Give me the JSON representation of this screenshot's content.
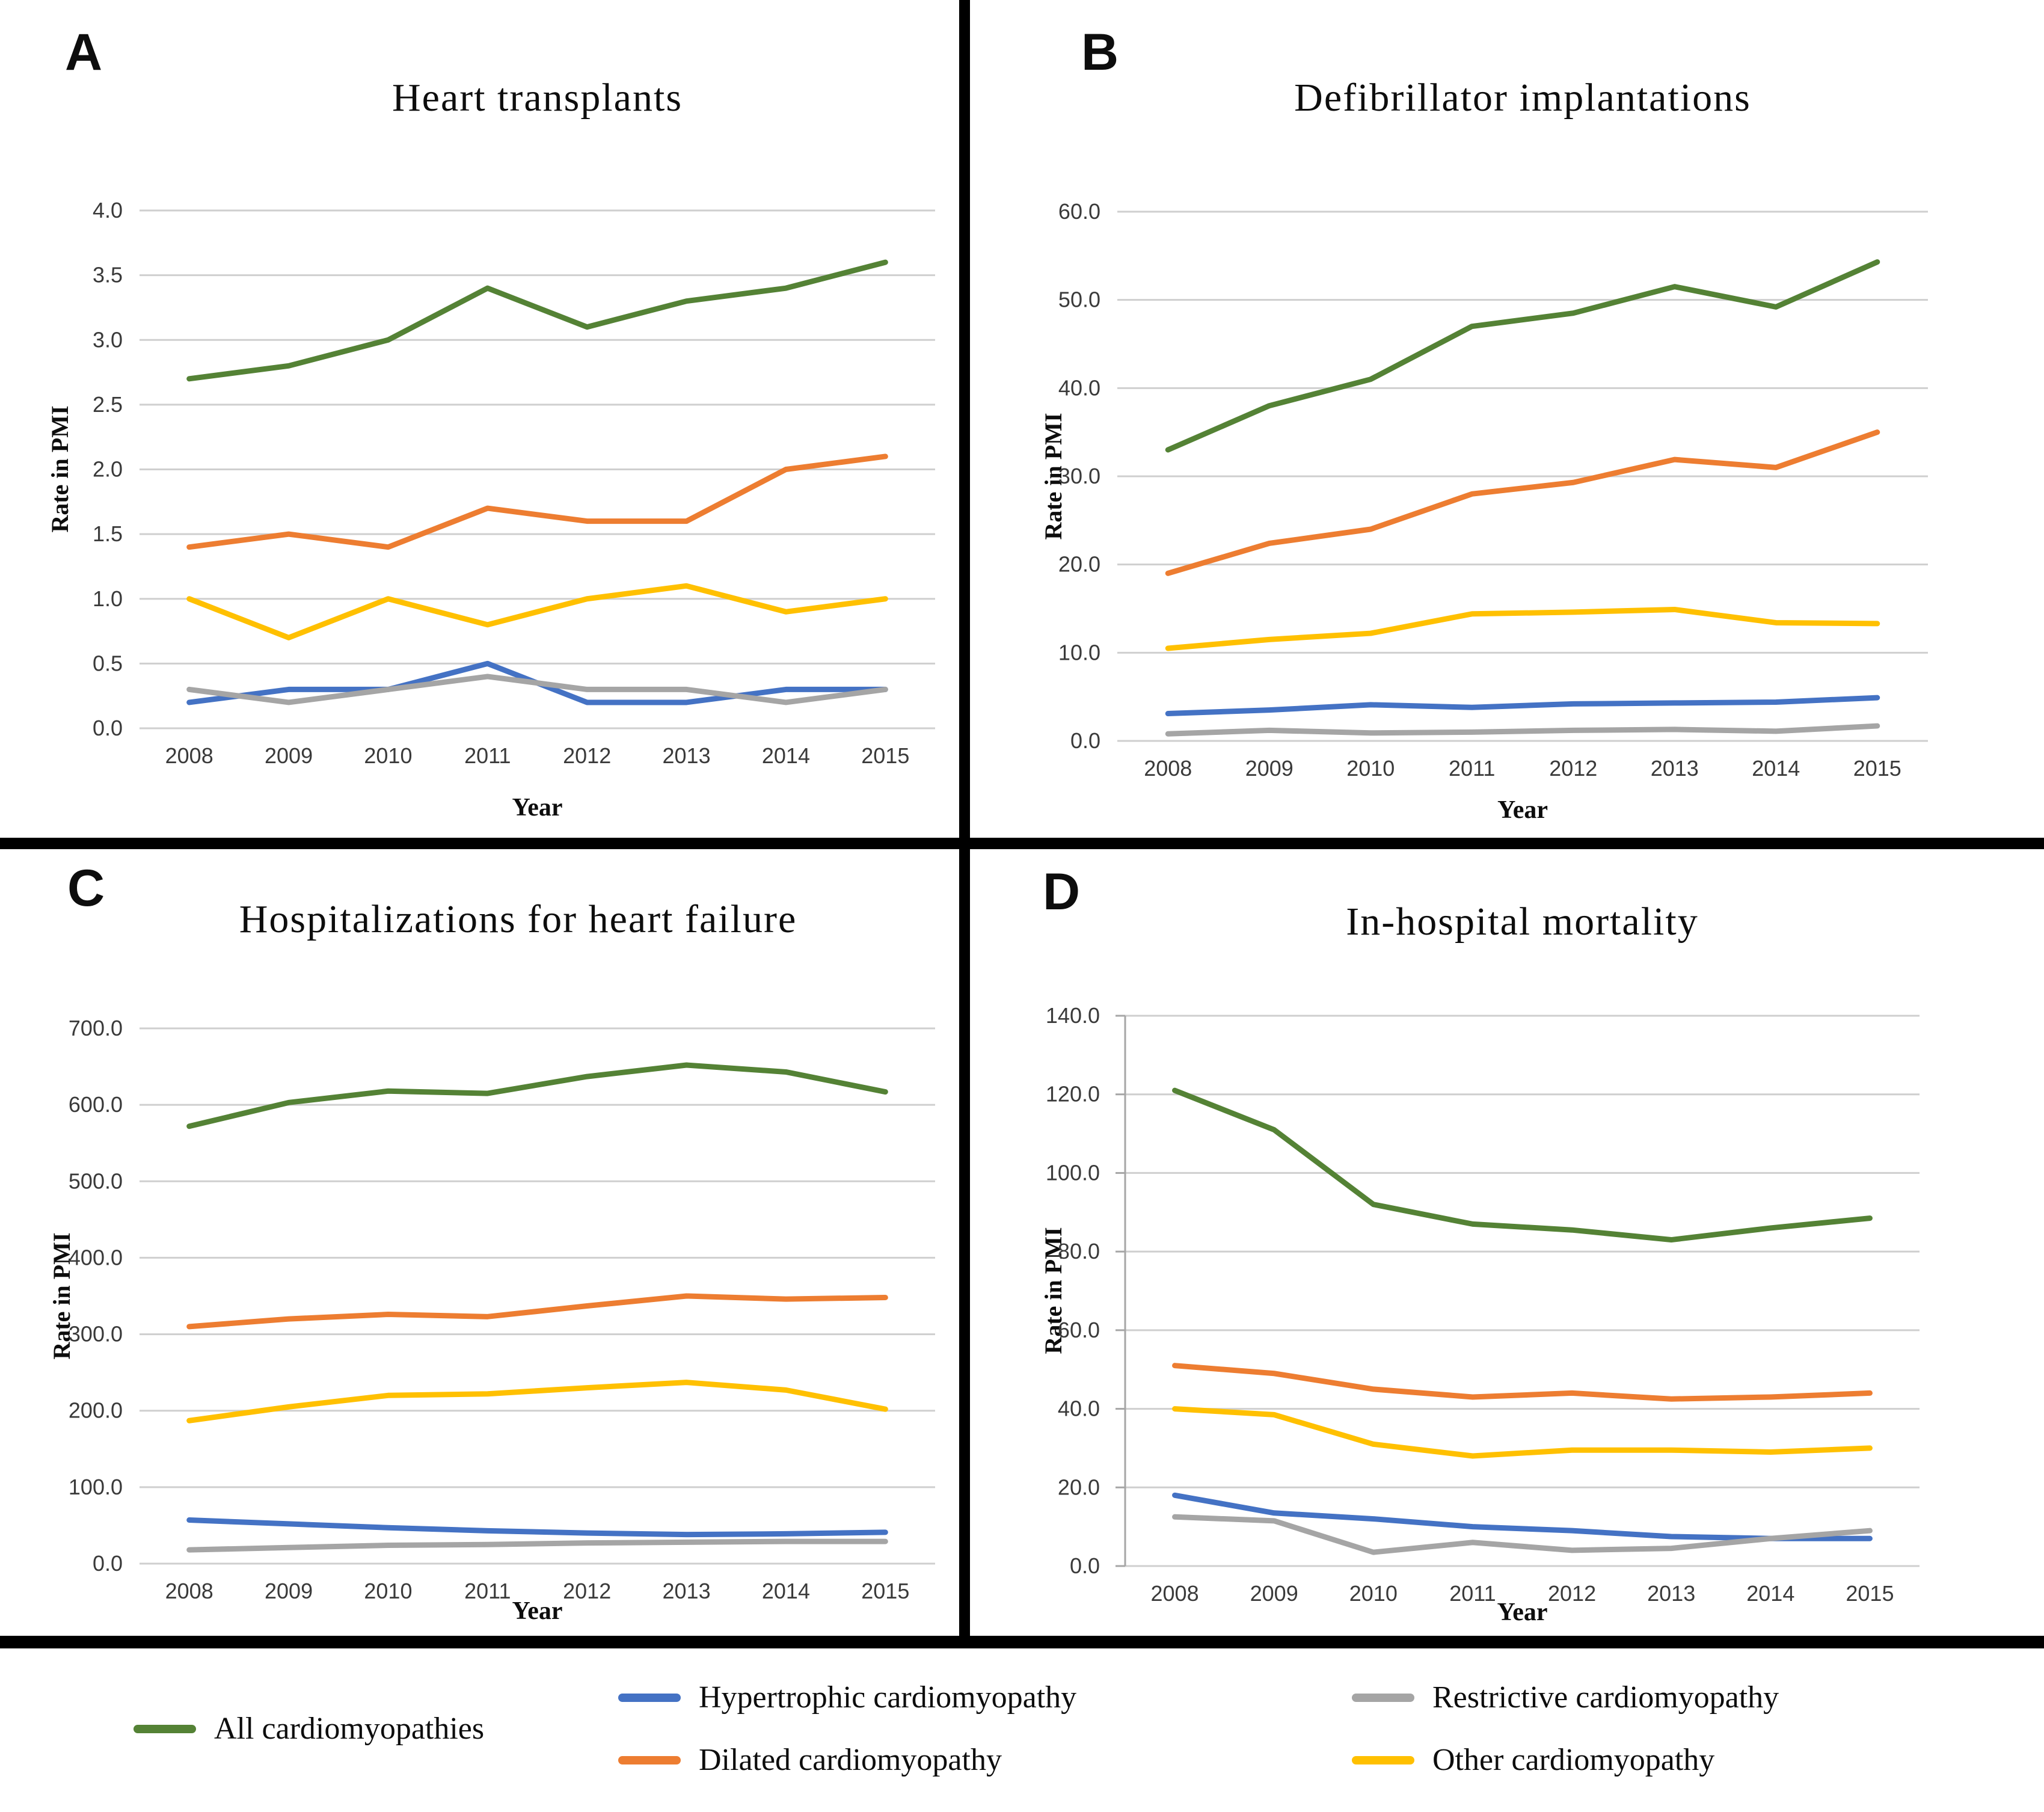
{
  "colors": {
    "all": "#548235",
    "hypertrophic": "#4472C4",
    "dilated": "#ED7D31",
    "restrictive": "#A5A5A5",
    "other": "#FFC000",
    "gridline": "#CFCFCF",
    "axis_line": "#A6A6A6",
    "divider": "#000000"
  },
  "legend": {
    "items": [
      {
        "label": "All cardiomyopathies",
        "color_key": "all"
      },
      {
        "label": "Hypertrophic cardiomyopathy",
        "color_key": "hypertrophic"
      },
      {
        "label": "Dilated cardiomyopathy",
        "color_key": "dilated"
      },
      {
        "label": "Restrictive cardiomyopathy",
        "color_key": "restrictive"
      },
      {
        "label": "Other cardiomyopathy",
        "color_key": "other"
      }
    ]
  },
  "chart_data": [
    {
      "type": "line",
      "letter": "A",
      "title": "Heart transplants",
      "xlabel": "Year",
      "ylabel": "Rate in PMI",
      "grid": true,
      "legend_position": "shared-bottom",
      "categories": [
        "2008",
        "2009",
        "2010",
        "2011",
        "2012",
        "2013",
        "2014",
        "2015"
      ],
      "ylim": [
        0,
        4
      ],
      "ytick_step": 0.5,
      "ytick_labels": [
        "0.0",
        "0.5",
        "1.0",
        "1.5",
        "2.0",
        "2.5",
        "3.0",
        "3.5",
        "4.0"
      ],
      "series": [
        {
          "name": "All cardiomyopathies",
          "color_key": "all",
          "values": [
            2.7,
            2.8,
            3.0,
            3.4,
            3.1,
            3.3,
            3.4,
            3.6
          ]
        },
        {
          "name": "Dilated cardiomyopathy",
          "color_key": "dilated",
          "values": [
            1.4,
            1.5,
            1.4,
            1.7,
            1.6,
            1.6,
            2.0,
            2.1
          ]
        },
        {
          "name": "Other cardiomyopathy",
          "color_key": "other",
          "values": [
            1.0,
            0.7,
            1.0,
            0.8,
            1.0,
            1.1,
            0.9,
            1.0
          ]
        },
        {
          "name": "Hypertrophic cardiomyopathy",
          "color_key": "hypertrophic",
          "values": [
            0.2,
            0.3,
            0.3,
            0.5,
            0.2,
            0.2,
            0.3,
            0.3
          ]
        },
        {
          "name": "Restrictive cardiomyopathy",
          "color_key": "restrictive",
          "values": [
            0.3,
            0.2,
            0.3,
            0.4,
            0.3,
            0.3,
            0.2,
            0.3
          ]
        }
      ]
    },
    {
      "type": "line",
      "letter": "B",
      "title": "Defibrillator implantations",
      "xlabel": "Year",
      "ylabel": "Rate in PMI",
      "grid": true,
      "legend_position": "shared-bottom",
      "categories": [
        "2008",
        "2009",
        "2010",
        "2011",
        "2012",
        "2013",
        "2014",
        "2015"
      ],
      "ylim": [
        0,
        60
      ],
      "ytick_step": 10,
      "ytick_labels": [
        "0.0",
        "10.0",
        "20.0",
        "30.0",
        "40.0",
        "50.0",
        "60.0"
      ],
      "series": [
        {
          "name": "All cardiomyopathies",
          "color_key": "all",
          "values": [
            33,
            38,
            41,
            47,
            48.5,
            51.5,
            49.2,
            54.3
          ]
        },
        {
          "name": "Dilated cardiomyopathy",
          "color_key": "dilated",
          "values": [
            19,
            22.4,
            24,
            28,
            29.3,
            31.9,
            31,
            35
          ]
        },
        {
          "name": "Other cardiomyopathy",
          "color_key": "other",
          "values": [
            10.5,
            11.5,
            12.2,
            14.4,
            14.6,
            14.9,
            13.4,
            13.3
          ]
        },
        {
          "name": "Hypertrophic cardiomyopathy",
          "color_key": "hypertrophic",
          "values": [
            3.1,
            3.5,
            4.1,
            3.8,
            4.2,
            4.3,
            4.4,
            4.9
          ]
        },
        {
          "name": "Restrictive cardiomyopathy",
          "color_key": "restrictive",
          "values": [
            0.8,
            1.2,
            0.9,
            1.0,
            1.2,
            1.3,
            1.1,
            1.7
          ]
        }
      ]
    },
    {
      "type": "line",
      "letter": "C",
      "title": "Hospitalizations for heart failure",
      "xlabel": "Year",
      "ylabel": "Rate in PMI",
      "grid": true,
      "legend_position": "shared-bottom",
      "categories": [
        "2008",
        "2009",
        "2010",
        "2011",
        "2012",
        "2013",
        "2014",
        "2015"
      ],
      "ylim": [
        0,
        700
      ],
      "ytick_step": 100,
      "ytick_labels": [
        "0.0",
        "100.0",
        "200.0",
        "300.0",
        "400.0",
        "500.0",
        "600.0",
        "700.0"
      ],
      "series": [
        {
          "name": "All cardiomyopathies",
          "color_key": "all",
          "values": [
            572,
            603,
            618,
            615,
            637,
            652,
            643,
            617
          ]
        },
        {
          "name": "Dilated cardiomyopathy",
          "color_key": "dilated",
          "values": [
            310,
            320,
            326,
            323,
            337,
            350,
            346,
            348
          ]
        },
        {
          "name": "Other cardiomyopathy",
          "color_key": "other",
          "values": [
            187,
            205,
            220,
            222,
            230,
            237,
            227,
            202
          ]
        },
        {
          "name": "Hypertrophic cardiomyopathy",
          "color_key": "hypertrophic",
          "values": [
            57,
            52,
            47,
            43,
            40,
            38,
            39,
            41
          ]
        },
        {
          "name": "Restrictive cardiomyopathy",
          "color_key": "restrictive",
          "values": [
            18,
            21,
            24,
            25,
            27,
            28,
            29,
            29
          ]
        }
      ]
    },
    {
      "type": "line",
      "letter": "D",
      "title": "In-hospital mortality",
      "xlabel": "Year",
      "ylabel": "Rate in PMI",
      "grid": true,
      "legend_position": "shared-bottom",
      "categories": [
        "2008",
        "2009",
        "2010",
        "2011",
        "2012",
        "2013",
        "2014",
        "2015"
      ],
      "ylim": [
        0,
        140
      ],
      "ytick_step": 20,
      "ytick_labels": [
        "0.0",
        "20.0",
        "40.0",
        "60.0",
        "80.0",
        "100.0",
        "120.0",
        "140.0"
      ],
      "series": [
        {
          "name": "All cardiomyopathies",
          "color_key": "all",
          "values": [
            121,
            111,
            92,
            87,
            85.5,
            83,
            86,
            88.5
          ]
        },
        {
          "name": "Dilated cardiomyopathy",
          "color_key": "dilated",
          "values": [
            51,
            49,
            45,
            43,
            44,
            42.5,
            43,
            44
          ]
        },
        {
          "name": "Other cardiomyopathy",
          "color_key": "other",
          "values": [
            40,
            38.5,
            31,
            28,
            29.5,
            29.5,
            29,
            30
          ]
        },
        {
          "name": "Hypertrophic cardiomyopathy",
          "color_key": "hypertrophic",
          "values": [
            18,
            13.5,
            12,
            10,
            9,
            7.5,
            7,
            7
          ]
        },
        {
          "name": "Restrictive cardiomyopathy",
          "color_key": "restrictive",
          "values": [
            12.5,
            11.5,
            3.5,
            6,
            4,
            4.5,
            7,
            9
          ]
        }
      ]
    }
  ]
}
